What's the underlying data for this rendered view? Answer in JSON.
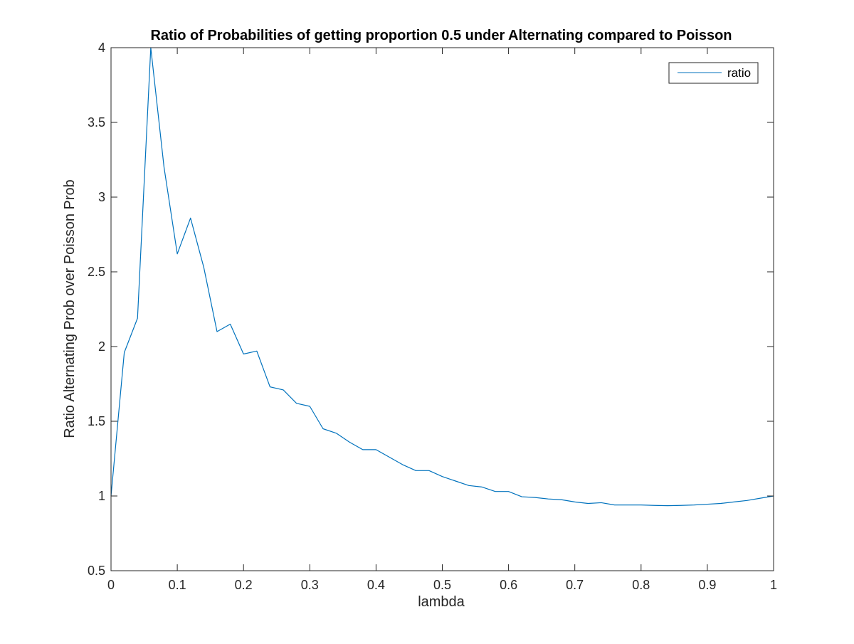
{
  "chart_data": {
    "type": "line",
    "title": "Ratio of Probabilities of getting proportion 0.5 under Alternating compared to Poisson",
    "xlabel": "lambda",
    "ylabel": "Ratio Alternating Prob over Poisson Prob",
    "xlim": [
      0,
      1
    ],
    "ylim": [
      0.5,
      4
    ],
    "xticks": [
      "0",
      "0.1",
      "0.2",
      "0.3",
      "0.4",
      "0.5",
      "0.6",
      "0.7",
      "0.8",
      "0.9",
      "1"
    ],
    "yticks": [
      "0.5",
      "1",
      "1.5",
      "2",
      "2.5",
      "3",
      "3.5",
      "4"
    ],
    "grid": false,
    "legend": {
      "position": "top-right",
      "entries": [
        "ratio"
      ]
    },
    "series": [
      {
        "name": "ratio",
        "color": "#0072BD",
        "x": [
          0,
          0.02,
          0.04,
          0.06,
          0.08,
          0.1,
          0.12,
          0.14,
          0.16,
          0.18,
          0.2,
          0.22,
          0.24,
          0.26,
          0.28,
          0.3,
          0.32,
          0.34,
          0.36,
          0.38,
          0.4,
          0.42,
          0.44,
          0.46,
          0.48,
          0.5,
          0.52,
          0.54,
          0.56,
          0.58,
          0.6,
          0.62,
          0.64,
          0.66,
          0.68,
          0.7,
          0.72,
          0.74,
          0.76,
          0.78,
          0.8,
          0.82,
          0.84,
          0.86,
          0.88,
          0.9,
          0.92,
          0.94,
          0.96,
          0.98,
          1.0
        ],
        "y": [
          1.0,
          1.96,
          2.19,
          4.0,
          3.2,
          2.62,
          2.86,
          2.53,
          2.1,
          2.15,
          1.95,
          1.97,
          1.73,
          1.71,
          1.62,
          1.6,
          1.45,
          1.42,
          1.36,
          1.31,
          1.31,
          1.26,
          1.21,
          1.17,
          1.17,
          1.13,
          1.1,
          1.07,
          1.06,
          1.03,
          1.03,
          0.995,
          0.99,
          0.98,
          0.975,
          0.96,
          0.95,
          0.955,
          0.94,
          0.94,
          0.94,
          0.937,
          0.935,
          0.937,
          0.94,
          0.945,
          0.95,
          0.96,
          0.97,
          0.985,
          1.0
        ]
      }
    ]
  }
}
